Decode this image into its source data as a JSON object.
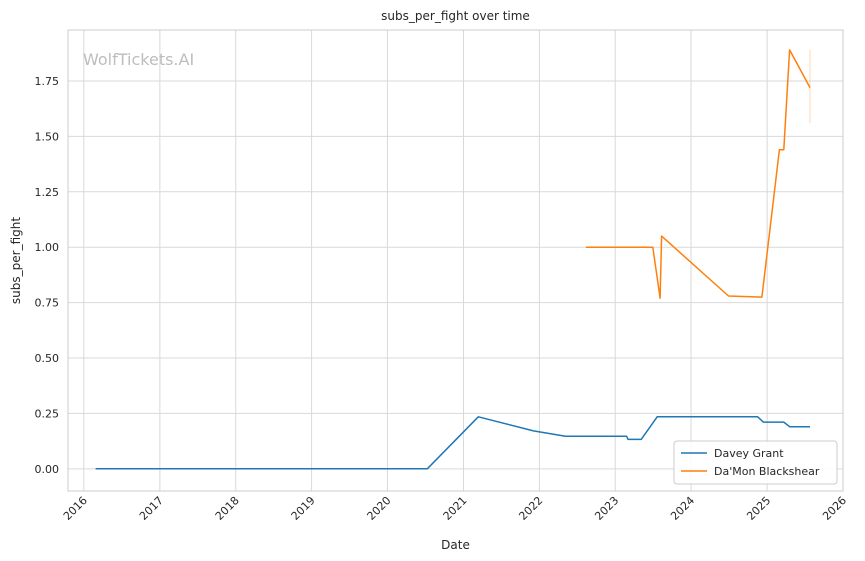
{
  "chart_data": {
    "type": "line",
    "title": "subs_per_fight over time",
    "xlabel": "Date",
    "ylabel": "subs_per_fight",
    "watermark": "WolfTickets.AI",
    "xlim": [
      "2015-10-17",
      "2026-01-01"
    ],
    "ylim": [
      -0.1,
      1.98
    ],
    "x_ticks": [
      "2016",
      "2017",
      "2018",
      "2019",
      "2020",
      "2021",
      "2022",
      "2023",
      "2024",
      "2025",
      "2026"
    ],
    "y_ticks": [
      "0.00",
      "0.25",
      "0.50",
      "0.75",
      "1.00",
      "1.25",
      "1.50",
      "1.75"
    ],
    "grid": true,
    "legend_position": "lower-right",
    "series": [
      {
        "name": "Davey Grant",
        "color": "#1f77b4",
        "points": [
          {
            "x": "2016-02-27",
            "y": 0.0
          },
          {
            "x": "2020-07-11",
            "y": 0.0
          },
          {
            "x": "2021-03-13",
            "y": 0.235
          },
          {
            "x": "2021-12-04",
            "y": 0.171
          },
          {
            "x": "2022-05-07",
            "y": 0.147
          },
          {
            "x": "2023-02-25",
            "y": 0.147
          },
          {
            "x": "2023-03-04",
            "y": 0.133
          },
          {
            "x": "2023-05-06",
            "y": 0.133
          },
          {
            "x": "2023-07-22",
            "y": 0.235
          },
          {
            "x": "2024-11-16",
            "y": 0.235
          },
          {
            "x": "2024-12-14",
            "y": 0.211
          },
          {
            "x": "2025-03-22",
            "y": 0.211
          },
          {
            "x": "2025-04-19",
            "y": 0.19
          },
          {
            "x": "2025-07-26",
            "y": 0.19
          }
        ]
      },
      {
        "name": "Da'Mon Blackshear",
        "color": "#ff7f0e",
        "points": [
          {
            "x": "2022-08-13",
            "y": 1.0
          },
          {
            "x": "2023-07-01",
            "y": 1.0
          },
          {
            "x": "2023-08-05",
            "y": 0.77
          },
          {
            "x": "2023-08-12",
            "y": 1.05
          },
          {
            "x": "2024-06-29",
            "y": 0.78
          },
          {
            "x": "2024-12-07",
            "y": 0.775
          },
          {
            "x": "2025-03-01",
            "y": 1.44
          },
          {
            "x": "2025-03-22",
            "y": 1.44
          },
          {
            "x": "2025-04-19",
            "y": 1.89
          },
          {
            "x": "2025-07-26",
            "y": 1.72
          }
        ],
        "error_bar": {
          "x": "2025-07-26",
          "low": 1.56,
          "high": 1.89
        }
      }
    ]
  }
}
